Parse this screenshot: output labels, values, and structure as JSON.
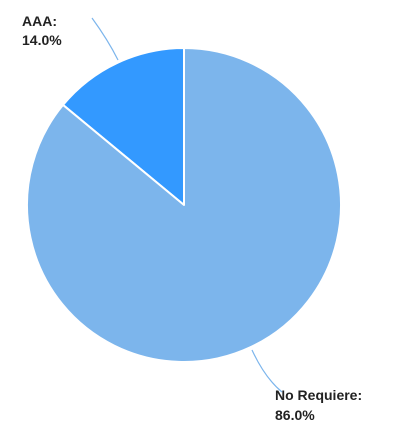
{
  "chart_data": {
    "type": "pie",
    "title": "",
    "slices": [
      {
        "name": "AAA",
        "value": 14.0,
        "label_line1": "AAA:",
        "label_line2": "14.0%",
        "color": "#3399ff"
      },
      {
        "name": "No Requiere",
        "value": 86.0,
        "label_line1": "No Requiere:",
        "label_line2": "86.0%",
        "color": "#7cb5ec"
      }
    ],
    "legend": "none",
    "slice_border_color": "#ffffff",
    "connector_color": "#7cb5ec"
  }
}
